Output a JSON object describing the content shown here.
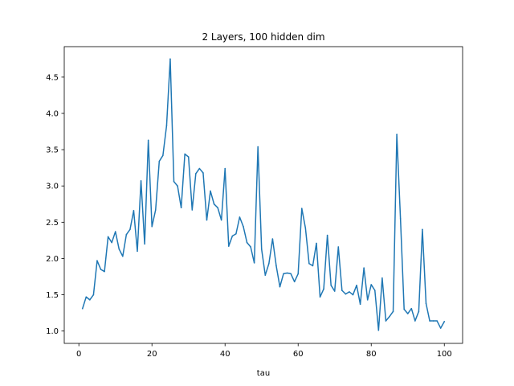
{
  "chart_data": {
    "type": "line",
    "title": "2 Layers, 100 hidden dim",
    "xlabel": "tau",
    "ylabel": "",
    "xlim": [
      -4,
      105
    ],
    "ylim": [
      0.83,
      4.92
    ],
    "xticks": [
      0,
      20,
      40,
      60,
      80,
      100
    ],
    "yticks": [
      1.0,
      1.5,
      2.0,
      2.5,
      3.0,
      3.5,
      4.0,
      4.5
    ],
    "xtick_labels": [
      "0",
      "20",
      "40",
      "60",
      "80",
      "100"
    ],
    "ytick_labels": [
      "1.0",
      "1.5",
      "2.0",
      "2.5",
      "3.0",
      "3.5",
      "4.0",
      "4.5"
    ],
    "grid": false,
    "series_color": "#1f77b4",
    "series": [
      {
        "x": [
          1,
          2,
          3,
          4,
          5,
          6,
          7,
          8,
          9,
          10,
          11,
          12,
          13,
          14,
          15,
          16,
          17,
          18,
          19,
          20,
          21,
          22,
          23,
          24,
          25,
          26,
          27,
          28,
          29,
          30,
          31,
          32,
          33,
          34,
          35,
          36,
          37,
          38,
          39,
          40,
          41,
          42,
          43,
          44,
          45,
          46,
          47,
          48,
          49,
          50,
          51,
          52,
          53,
          54,
          55,
          56,
          57,
          58,
          59,
          60,
          61,
          62,
          63,
          64,
          65,
          66,
          67,
          68,
          69,
          70,
          71,
          72,
          73,
          74,
          75,
          76,
          77,
          78,
          79,
          80,
          81,
          82,
          83,
          84,
          85,
          86,
          87,
          88,
          89,
          90,
          91,
          92,
          93,
          94,
          95,
          96,
          97,
          98,
          99,
          100
        ],
        "values": [
          1.31,
          1.47,
          1.43,
          1.5,
          1.97,
          1.85,
          1.82,
          2.3,
          2.22,
          2.37,
          2.13,
          2.03,
          2.33,
          2.4,
          2.66,
          2.1,
          3.07,
          2.2,
          3.63,
          2.44,
          2.67,
          3.34,
          3.42,
          3.83,
          4.75,
          3.06,
          3.0,
          2.7,
          3.44,
          3.4,
          2.67,
          3.17,
          3.24,
          3.18,
          2.53,
          2.93,
          2.75,
          2.7,
          2.53,
          3.24,
          2.17,
          2.31,
          2.34,
          2.57,
          2.44,
          2.22,
          2.16,
          1.94,
          3.54,
          2.13,
          1.77,
          1.93,
          2.27,
          1.9,
          1.61,
          1.79,
          1.8,
          1.79,
          1.68,
          1.79,
          2.69,
          2.42,
          1.93,
          1.9,
          2.21,
          1.47,
          1.58,
          2.32,
          1.63,
          1.55,
          2.16,
          1.56,
          1.51,
          1.54,
          1.5,
          1.63,
          1.37,
          1.87,
          1.43,
          1.64,
          1.56,
          1.01,
          1.73,
          1.14,
          1.2,
          1.27,
          3.71,
          2.55,
          1.3,
          1.24,
          1.31,
          1.14,
          1.27,
          2.4,
          1.38,
          1.14,
          1.14,
          1.14,
          1.04,
          1.13
        ]
      }
    ]
  }
}
